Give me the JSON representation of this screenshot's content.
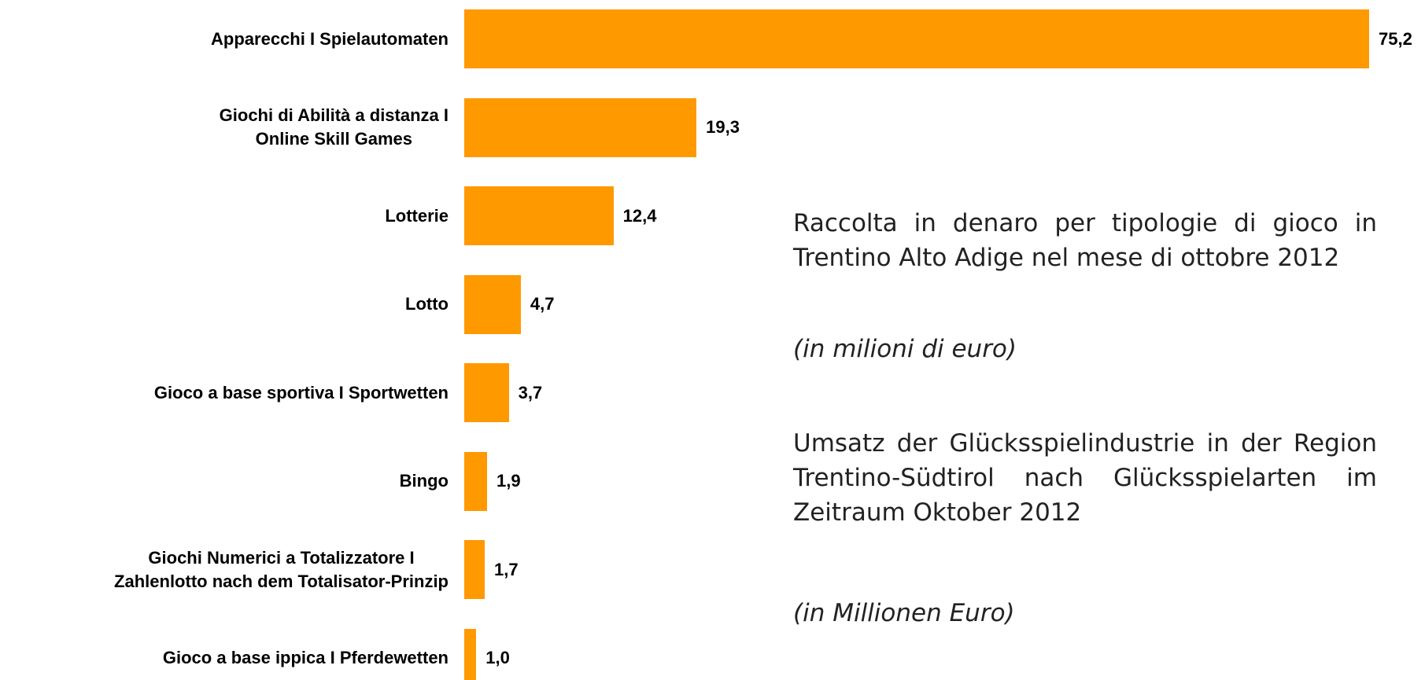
{
  "chart_data": {
    "type": "bar",
    "orientation": "horizontal",
    "title": "Raccolta in denaro per tipologie di gioco in Trentino Alto Adige nel mese di ottobre 2012",
    "subtitle": "(in milioni di euro)",
    "title_de": "Umsatz der Glücksspielindustrie in der Region Trentino-Südtirol nach Glücksspielarten im Zeitraum Oktober 2012",
    "subtitle_de": "(in Millionen Euro)",
    "categories": [
      "Apparecchi I Spielautomaten",
      "Giochi di Abilità a distanza I\nOnline Skill Games",
      "Lotterie",
      "Lotto",
      "Gioco a base sportiva I Sportwetten",
      "Bingo",
      "Giochi Numerici a Totalizzatore I\nZahlenlotto nach dem Totalisator-Prinzip",
      "Gioco a base ippica I Pferdewetten"
    ],
    "values": [
      75.2,
      19.3,
      12.4,
      4.7,
      3.7,
      1.9,
      1.7,
      1.0
    ],
    "value_labels": [
      "75,2",
      "19,3",
      "12,4",
      "4,7",
      "3,7",
      "1,9",
      "1,7",
      "1,0"
    ],
    "color": "#ff9900"
  }
}
